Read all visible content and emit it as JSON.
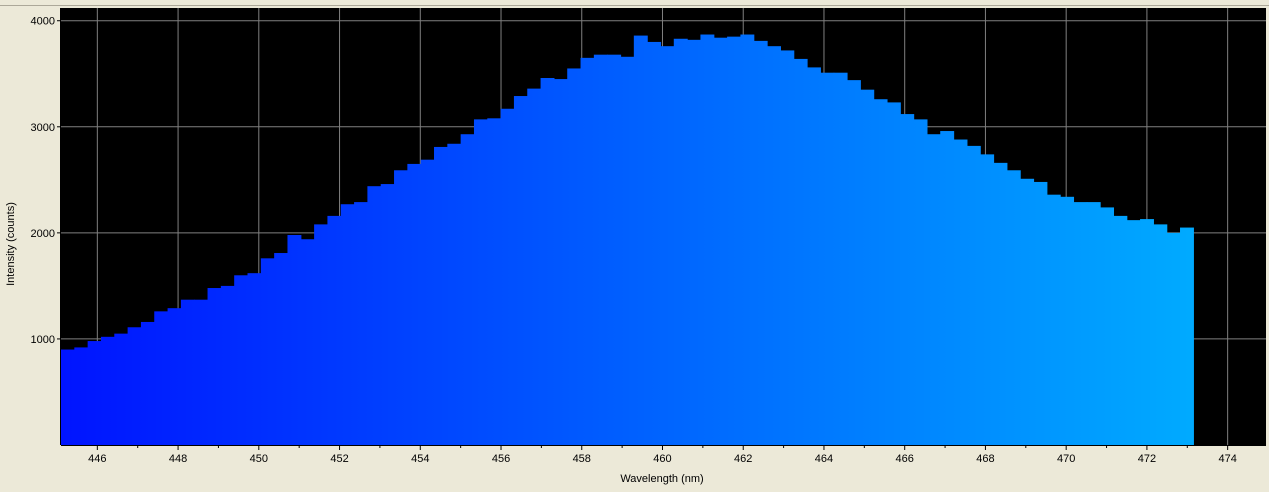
{
  "chart_data": {
    "type": "bar",
    "xlabel": "Wavelength (nm)",
    "ylabel": "Intensity (counts)",
    "xlim": [
      445.1,
      474.95
    ],
    "ylim": [
      0,
      4120
    ],
    "x_ticks": [
      446,
      448,
      450,
      452,
      454,
      456,
      458,
      460,
      462,
      464,
      466,
      468,
      470,
      472,
      474
    ],
    "y_ticks": [
      1000,
      2000,
      3000,
      4000
    ],
    "grid": true,
    "bin_start": 445.1,
    "bin_width": 0.33,
    "values": [
      900,
      920,
      980,
      1020,
      1050,
      1110,
      1160,
      1260,
      1290,
      1370,
      1370,
      1480,
      1500,
      1600,
      1620,
      1760,
      1810,
      1980,
      1940,
      2080,
      2160,
      2270,
      2290,
      2440,
      2460,
      2590,
      2650,
      2690,
      2810,
      2840,
      2930,
      3070,
      3080,
      3170,
      3290,
      3360,
      3460,
      3450,
      3550,
      3650,
      3680,
      3680,
      3660,
      3860,
      3800,
      3760,
      3830,
      3820,
      3870,
      3840,
      3850,
      3870,
      3810,
      3760,
      3720,
      3640,
      3560,
      3510,
      3510,
      3440,
      3350,
      3260,
      3230,
      3120,
      3070,
      2930,
      2960,
      2880,
      2820,
      2740,
      2660,
      2590,
      2510,
      2480,
      2360,
      2340,
      2290,
      2290,
      2240,
      2160,
      2120,
      2130,
      2080,
      2000,
      2050
    ],
    "colors": {
      "plot_background": "#000000",
      "grid": "#808080",
      "bar_start": "#0014ff",
      "bar_end": "#00b4ff"
    }
  }
}
